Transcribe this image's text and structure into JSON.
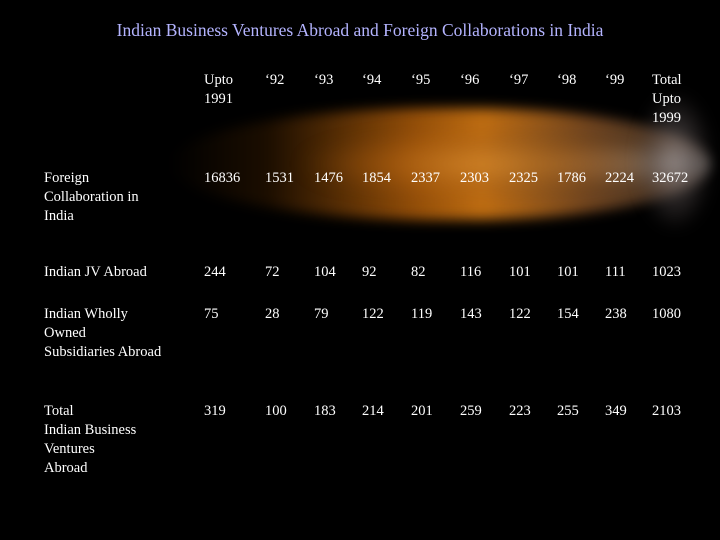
{
  "title": "Indian Business Ventures Abroad and Foreign Collaborations in India",
  "columns": {
    "upto1991": "Upto 1991",
    "y92": "‘92",
    "y93": "‘93",
    "y94": "‘94",
    "y95": "‘95",
    "y96": "‘96",
    "y97": "‘97",
    "y98": "‘98",
    "y99": "‘99",
    "total": "Total Upto 1999"
  },
  "column_lines": {
    "upto1991": [
      "Upto",
      "1991"
    ],
    "total": [
      "Total",
      "Upto",
      "1999"
    ]
  },
  "rows": [
    {
      "label_lines": [
        "Foreign",
        "Collaboration in",
        "India"
      ],
      "values": [
        "16836",
        "1531",
        "1476",
        "1854",
        "2337",
        "2303",
        "2325",
        "1786",
        "2224",
        "32672"
      ]
    },
    {
      "label_lines": [
        "Indian JV Abroad"
      ],
      "values": [
        "244",
        "72",
        "104",
        "92",
        "82",
        "116",
        "101",
        "101",
        "111",
        "1023"
      ]
    },
    {
      "label_lines": [
        "Indian Wholly",
        "Owned",
        "Subsidiaries Abroad"
      ],
      "values": [
        "75",
        "28",
        "79",
        "122",
        "119",
        "143",
        "122",
        "154",
        "238",
        "1080"
      ]
    },
    {
      "label_lines": [
        "Total",
        "Indian Business",
        "Ventures",
        "Abroad"
      ],
      "values": [
        "319",
        "100",
        "183",
        "214",
        "201",
        "259",
        "223",
        "255",
        "349",
        "2103"
      ]
    }
  ]
}
